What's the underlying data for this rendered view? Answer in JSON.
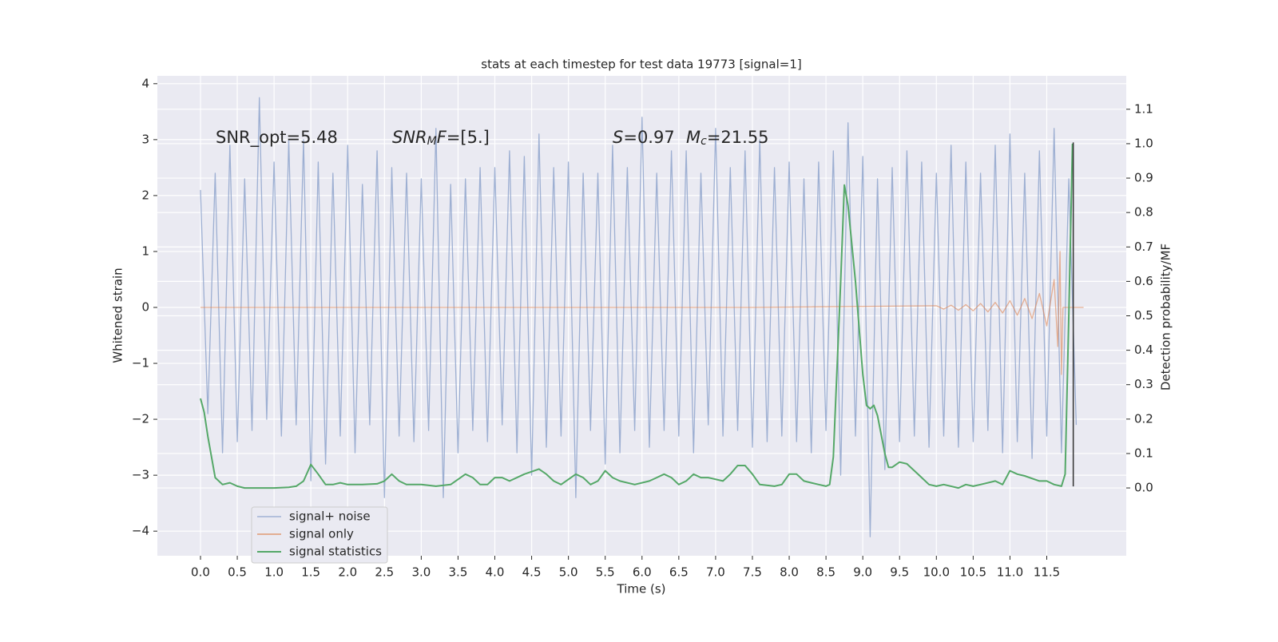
{
  "chart_data": {
    "type": "line",
    "title": "stats at each timestep for test data 19773 [signal=1]",
    "xlabel": "Time (s)",
    "ylabel": "Whitened strain",
    "y2label": "Detection probability/MF",
    "xlim": [
      -0.586,
      12.58
    ],
    "ylim": [
      -4.44,
      4.14
    ],
    "y2lim": [
      -0.197,
      1.197
    ],
    "xticks": [
      {
        "value": 0,
        "label": "0.0"
      },
      0.5,
      {
        "value": 1,
        "label": "1.0"
      },
      1.5,
      {
        "value": 2,
        "label": "2.0"
      },
      2.5,
      {
        "value": 3,
        "label": "3.0"
      },
      3.5,
      {
        "value": 4,
        "label": "4.0"
      },
      4.5,
      {
        "value": 5,
        "label": "5.0"
      },
      5.5,
      {
        "value": 6,
        "label": "6.0"
      },
      6.5,
      {
        "value": 7,
        "label": "7.0"
      },
      7.5,
      {
        "value": 8,
        "label": "8.0"
      },
      8.5,
      {
        "value": 9,
        "label": "9.0"
      },
      9.5,
      {
        "value": 10,
        "label": "10.0"
      },
      10.5,
      {
        "value": 11,
        "label": "11.0"
      },
      11.5
    ],
    "yticks": [
      {
        "value": -4,
        "label": "−4"
      },
      {
        "value": -3,
        "label": "−3"
      },
      {
        "value": -2,
        "label": "−2"
      },
      {
        "value": -1,
        "label": "−1"
      },
      0,
      1,
      2,
      3,
      4
    ],
    "y2ticks": [
      {
        "value": 0,
        "label": "0.0"
      },
      0.1,
      0.2,
      0.3,
      0.4,
      0.5,
      0.6,
      0.7,
      0.8,
      0.9,
      {
        "value": 1,
        "label": "1.0"
      },
      1.1
    ],
    "grid": true,
    "legend": "lower left",
    "annotations": [
      {
        "parts": [
          {
            "text": "SNR_opt=5.48"
          }
        ]
      },
      {
        "parts": [
          {
            "text": "SNR",
            "italic": true
          },
          {
            "text": "M",
            "italic": true,
            "sub": true
          },
          {
            "text": "F",
            "italic": true
          },
          {
            "text": "=[5.]"
          }
        ]
      },
      {
        "parts": [
          {
            "text": "S",
            "italic": true
          },
          {
            "text": "=0.97"
          }
        ]
      },
      {
        "parts": [
          {
            "text": "M",
            "italic": true
          },
          {
            "text": "c",
            "italic": true,
            "sub": true
          },
          {
            "text": "=21.55"
          }
        ]
      }
    ],
    "vlines": [
      {
        "x": 11.86,
        "ymin": -3.2,
        "ymax": 2.95,
        "color": "#333333"
      }
    ],
    "series": [
      {
        "name": "signal+ noise",
        "color": "#8fa4cc",
        "x": [
          0.0,
          0.1,
          0.2,
          0.3,
          0.4,
          0.5,
          0.6,
          0.7,
          0.8,
          0.9,
          1.0,
          1.1,
          1.2,
          1.3,
          1.4,
          1.5,
          1.6,
          1.7,
          1.8,
          1.9,
          2.0,
          2.1,
          2.2,
          2.3,
          2.4,
          2.5,
          2.6,
          2.7,
          2.8,
          2.9,
          3.0,
          3.1,
          3.2,
          3.3,
          3.4,
          3.5,
          3.6,
          3.7,
          3.8,
          3.9,
          4.0,
          4.1,
          4.2,
          4.3,
          4.4,
          4.5,
          4.6,
          4.7,
          4.8,
          4.9,
          5.0,
          5.1,
          5.2,
          5.3,
          5.4,
          5.5,
          5.6,
          5.7,
          5.8,
          5.9,
          6.0,
          6.1,
          6.2,
          6.3,
          6.4,
          6.5,
          6.6,
          6.7,
          6.8,
          6.9,
          7.0,
          7.1,
          7.2,
          7.3,
          7.4,
          7.5,
          7.6,
          7.7,
          7.8,
          7.9,
          8.0,
          8.1,
          8.2,
          8.3,
          8.4,
          8.5,
          8.6,
          8.7,
          8.8,
          8.9,
          9.0,
          9.1,
          9.2,
          9.3,
          9.4,
          9.5,
          9.6,
          9.7,
          9.8,
          9.9,
          10.0,
          10.1,
          10.2,
          10.3,
          10.4,
          10.5,
          10.6,
          10.7,
          10.8,
          10.9,
          11.0,
          11.1,
          11.2,
          11.3,
          11.4,
          11.5,
          11.6,
          11.7,
          11.8,
          11.9
        ],
        "values": [
          2.1,
          -1.9,
          2.4,
          -2.6,
          2.9,
          -2.4,
          2.3,
          -2.2,
          3.75,
          -2.0,
          2.6,
          -2.3,
          3.0,
          -2.1,
          3.0,
          -3.1,
          2.6,
          -2.8,
          2.4,
          -2.3,
          2.9,
          -2.6,
          2.2,
          -2.1,
          2.8,
          -3.4,
          2.5,
          -2.3,
          2.4,
          -2.4,
          2.3,
          -2.2,
          3.2,
          -3.4,
          2.2,
          -2.6,
          2.3,
          -2.2,
          2.5,
          -2.4,
          2.5,
          -2.1,
          2.8,
          -2.6,
          2.7,
          -3.0,
          3.1,
          -2.5,
          2.5,
          -2.3,
          2.6,
          -3.4,
          2.4,
          -2.2,
          2.4,
          -2.8,
          2.9,
          -2.6,
          2.5,
          -2.2,
          3.4,
          -2.5,
          2.4,
          -2.2,
          2.8,
          -2.3,
          2.8,
          -2.6,
          2.4,
          -2.1,
          3.2,
          -2.3,
          2.5,
          -2.2,
          2.8,
          -2.5,
          3.0,
          -2.4,
          2.5,
          -2.3,
          2.6,
          -2.4,
          2.3,
          -2.6,
          2.6,
          -2.2,
          2.8,
          -3.0,
          3.3,
          -2.3,
          2.7,
          -4.1,
          2.3,
          -2.9,
          2.5,
          -2.4,
          2.8,
          -2.3,
          2.6,
          -2.5,
          2.4,
          -2.3,
          2.9,
          -2.5,
          2.6,
          -2.4,
          2.4,
          -2.2,
          2.9,
          -2.6,
          3.1,
          -2.4,
          2.4,
          -2.7,
          2.8,
          -2.3,
          3.2,
          -2.6,
          2.3,
          -2.1
        ]
      },
      {
        "name": "signal only",
        "color": "#dd8452",
        "x": [
          0,
          7.5,
          10.0,
          10.1,
          10.2,
          10.3,
          10.4,
          10.5,
          10.6,
          10.7,
          10.8,
          10.9,
          11.0,
          11.1,
          11.2,
          11.3,
          11.4,
          11.5,
          11.6,
          11.65,
          11.68,
          11.7,
          11.72,
          12.0
        ],
        "values": [
          0,
          0,
          0.03,
          -0.03,
          0.04,
          -0.05,
          0.05,
          -0.06,
          0.07,
          -0.08,
          0.09,
          -0.1,
          0.12,
          -0.14,
          0.16,
          -0.2,
          0.25,
          -0.33,
          0.5,
          -0.7,
          1.0,
          -1.2,
          0,
          0
        ]
      },
      {
        "name": "signal statistics",
        "color": "#55a868",
        "axis": "y2",
        "x": [
          0.0,
          0.05,
          0.1,
          0.2,
          0.3,
          0.4,
          0.5,
          0.6,
          0.8,
          1.0,
          1.2,
          1.3,
          1.4,
          1.5,
          1.6,
          1.7,
          1.8,
          1.9,
          2.0,
          2.2,
          2.4,
          2.5,
          2.6,
          2.7,
          2.8,
          3.0,
          3.2,
          3.4,
          3.6,
          3.7,
          3.8,
          3.9,
          4.0,
          4.1,
          4.2,
          4.4,
          4.6,
          4.7,
          4.8,
          4.9,
          5.1,
          5.2,
          5.3,
          5.4,
          5.5,
          5.6,
          5.7,
          5.9,
          6.1,
          6.2,
          6.3,
          6.4,
          6.5,
          6.6,
          6.7,
          6.8,
          6.9,
          7.1,
          7.2,
          7.3,
          7.4,
          7.5,
          7.6,
          7.8,
          7.9,
          8.0,
          8.1,
          8.2,
          8.4,
          8.5,
          8.55,
          8.6,
          8.7,
          8.75,
          8.8,
          8.9,
          9.0,
          9.05,
          9.1,
          9.15,
          9.2,
          9.3,
          9.35,
          9.4,
          9.5,
          9.6,
          9.7,
          9.8,
          9.9,
          10.0,
          10.1,
          10.3,
          10.4,
          10.5,
          10.6,
          10.8,
          10.9,
          11.0,
          11.1,
          11.2,
          11.4,
          11.5,
          11.6,
          11.7,
          11.75,
          11.8,
          11.85
        ],
        "values": [
          0.26,
          0.22,
          0.15,
          0.03,
          0.01,
          0.015,
          0.005,
          0.0,
          0.0,
          0.0,
          0.002,
          0.005,
          0.02,
          0.068,
          0.04,
          0.01,
          0.01,
          0.015,
          0.01,
          0.01,
          0.012,
          0.02,
          0.04,
          0.02,
          0.01,
          0.01,
          0.005,
          0.01,
          0.04,
          0.03,
          0.01,
          0.01,
          0.03,
          0.03,
          0.02,
          0.04,
          0.055,
          0.04,
          0.02,
          0.01,
          0.04,
          0.03,
          0.01,
          0.02,
          0.05,
          0.03,
          0.02,
          0.01,
          0.02,
          0.03,
          0.04,
          0.03,
          0.01,
          0.02,
          0.04,
          0.03,
          0.03,
          0.02,
          0.04,
          0.065,
          0.065,
          0.04,
          0.01,
          0.005,
          0.01,
          0.04,
          0.04,
          0.02,
          0.01,
          0.005,
          0.01,
          0.09,
          0.6,
          0.88,
          0.82,
          0.6,
          0.33,
          0.24,
          0.23,
          0.24,
          0.21,
          0.1,
          0.06,
          0.06,
          0.075,
          0.07,
          0.05,
          0.03,
          0.01,
          0.005,
          0.01,
          0.0,
          0.01,
          0.005,
          0.01,
          0.02,
          0.01,
          0.05,
          0.04,
          0.035,
          0.02,
          0.02,
          0.01,
          0.005,
          0.04,
          0.5,
          1.0
        ]
      }
    ]
  }
}
